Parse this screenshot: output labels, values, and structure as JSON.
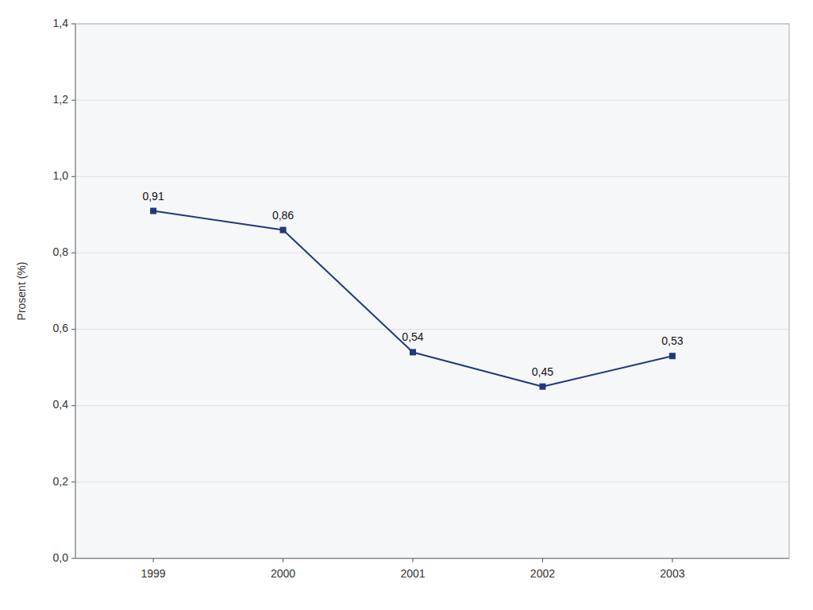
{
  "chart_data": {
    "type": "line",
    "ylabel": "Prosent (%)",
    "x": [
      1999,
      2000,
      2001,
      2002,
      2003
    ],
    "values": [
      0.91,
      0.86,
      0.54,
      0.45,
      0.53
    ],
    "value_labels": [
      "0,91",
      "0,86",
      "0,54",
      "0,45",
      "0,53"
    ],
    "data_labels": true,
    "xlim": [
      1998.4,
      2003.9
    ],
    "xticks": [
      1999,
      2000,
      2001,
      2002,
      2003
    ],
    "ylim": [
      0.0,
      1.4
    ],
    "yticks": [
      {
        "value": 0.0,
        "label": "0,0"
      },
      {
        "value": 0.2,
        "label": "0,2"
      },
      {
        "value": 0.4,
        "label": "0,4"
      },
      {
        "value": 0.6,
        "label": "0,6"
      },
      {
        "value": 0.8,
        "label": "0,8"
      },
      {
        "value": 1.0,
        "label": "1,0"
      },
      {
        "value": 1.2,
        "label": "1,2"
      },
      {
        "value": 1.4,
        "label": "1,4"
      }
    ],
    "grid": true,
    "color": "#1F3A7A",
    "marker": "square"
  }
}
